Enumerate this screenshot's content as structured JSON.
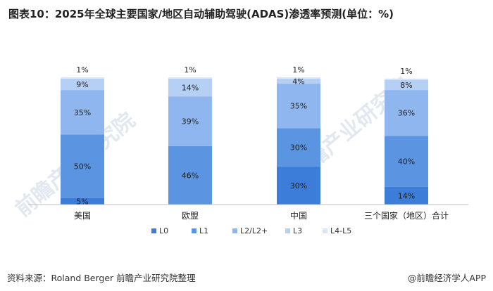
{
  "title": "图表10：2025年全球主要国家/地区自动辅助驾驶(ADAS)渗透率预测(单位：%)",
  "source": "资料来源：Roland Berger 前瞻产业研究院整理",
  "brand": "@前瞻经济学人APP",
  "watermark": "前瞻产业研究院",
  "colors": {
    "L0": "#3b7dd8",
    "L1": "#5b94e0",
    "L2/L2+": "#8fb6ee",
    "L3": "#b6cff4",
    "L4-L5": "#d9e6f9"
  },
  "chart_data": {
    "type": "bar",
    "stacked": true,
    "categories": [
      "美国",
      "欧盟",
      "中国",
      "三个国家（地区）合计"
    ],
    "series": [
      {
        "name": "L0",
        "values": [
          5,
          0,
          30,
          14
        ]
      },
      {
        "name": "L1",
        "values": [
          50,
          46,
          30,
          40
        ]
      },
      {
        "name": "L2/L2+",
        "values": [
          35,
          39,
          35,
          36
        ]
      },
      {
        "name": "L3",
        "values": [
          9,
          14,
          4,
          8
        ]
      },
      {
        "name": "L4-L5",
        "values": [
          1,
          1,
          1,
          1
        ]
      }
    ],
    "ylim": [
      0,
      100
    ],
    "legend": "bottom",
    "grid": false
  }
}
